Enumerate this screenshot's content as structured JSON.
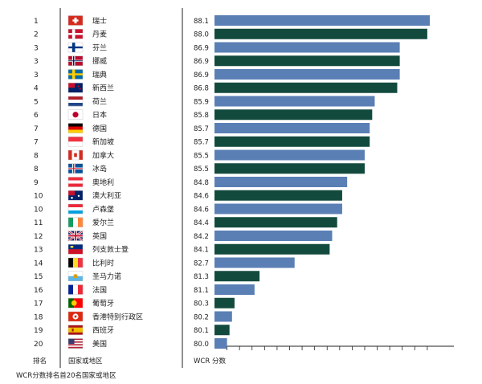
{
  "chart_data": {
    "type": "bar",
    "orientation": "horizontal",
    "colors": {
      "blue": "#5a7fb5",
      "green": "#134a3e"
    },
    "xlim": [
      79.5,
      88.3
    ],
    "headers": {
      "rank": "排名",
      "country": "国家或地区",
      "score": "WCR  分数"
    },
    "footnote": "WCR分数排名首20名国家或地区",
    "rows": [
      {
        "rank": "1",
        "name": "瑞士",
        "flag": "switzerland-flag",
        "value": 88.1,
        "color": "blue"
      },
      {
        "rank": "2",
        "name": "丹麦",
        "flag": "denmark-flag",
        "value": 88.0,
        "color": "green"
      },
      {
        "rank": "3",
        "name": "芬兰",
        "flag": "finland-flag",
        "value": 86.9,
        "color": "blue"
      },
      {
        "rank": "3",
        "name": "挪威",
        "flag": "norway-flag",
        "value": 86.9,
        "color": "green"
      },
      {
        "rank": "3",
        "name": "瑞典",
        "flag": "sweden-flag",
        "value": 86.9,
        "color": "blue"
      },
      {
        "rank": "4",
        "name": "新西兰",
        "flag": "new-zealand-flag",
        "value": 86.8,
        "color": "green"
      },
      {
        "rank": "5",
        "name": "荷兰",
        "flag": "netherlands-flag",
        "value": 85.9,
        "color": "blue"
      },
      {
        "rank": "6",
        "name": "日本",
        "flag": "japan-flag",
        "value": 85.8,
        "color": "green"
      },
      {
        "rank": "7",
        "name": "德国",
        "flag": "germany-flag",
        "value": 85.7,
        "color": "blue"
      },
      {
        "rank": "7",
        "name": "新加坡",
        "flag": "singapore-flag",
        "value": 85.7,
        "color": "green"
      },
      {
        "rank": "8",
        "name": "加拿大",
        "flag": "canada-flag",
        "value": 85.5,
        "color": "blue"
      },
      {
        "rank": "8",
        "name": "冰岛",
        "flag": "iceland-flag",
        "value": 85.5,
        "color": "green"
      },
      {
        "rank": "9",
        "name": "奥地利",
        "flag": "austria-flag",
        "value": 84.8,
        "color": "blue"
      },
      {
        "rank": "10",
        "name": "澳大利亚",
        "flag": "australia-flag",
        "value": 84.6,
        "color": "green"
      },
      {
        "rank": "10",
        "name": "卢森堡",
        "flag": "luxembourg-flag",
        "value": 84.6,
        "color": "blue"
      },
      {
        "rank": "11",
        "name": "爱尔兰",
        "flag": "ireland-flag",
        "value": 84.4,
        "color": "green"
      },
      {
        "rank": "12",
        "name": "英国",
        "flag": "uk-flag",
        "value": 84.2,
        "color": "blue"
      },
      {
        "rank": "13",
        "name": "列支敦士登",
        "flag": "liechtenstein-flag",
        "value": 84.1,
        "color": "green"
      },
      {
        "rank": "14",
        "name": "比利时",
        "flag": "belgium-flag",
        "value": 82.7,
        "color": "blue"
      },
      {
        "rank": "15",
        "name": "圣马力诺",
        "flag": "san-marino-flag",
        "value": 81.3,
        "color": "green"
      },
      {
        "rank": "16",
        "name": "法国",
        "flag": "france-flag",
        "value": 81.1,
        "color": "blue"
      },
      {
        "rank": "17",
        "name": "葡萄牙",
        "flag": "portugal-flag",
        "value": 80.3,
        "color": "green"
      },
      {
        "rank": "18",
        "name": "香港特别行政区",
        "flag": "hong-kong-flag",
        "value": 80.2,
        "color": "blue"
      },
      {
        "rank": "19",
        "name": "西班牙",
        "flag": "spain-flag",
        "value": 80.1,
        "color": "green"
      },
      {
        "rank": "20",
        "name": "美国",
        "flag": "usa-flag",
        "value": 80.0,
        "color": "blue"
      }
    ]
  }
}
